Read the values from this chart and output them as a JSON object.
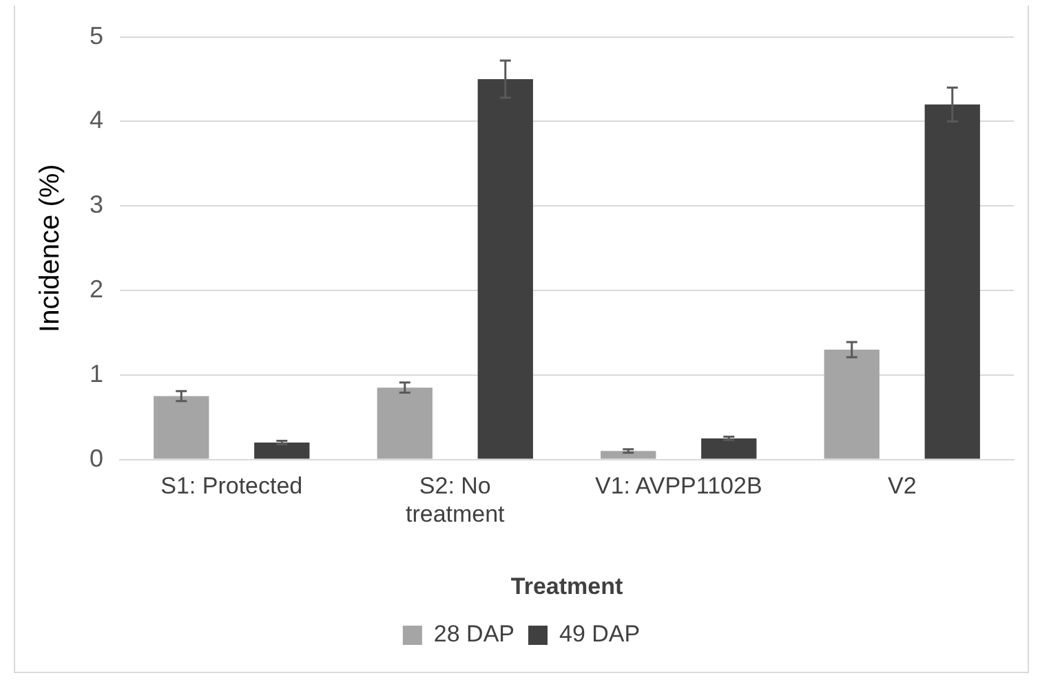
{
  "chart_data": {
    "type": "bar",
    "xlabel": "Treatment",
    "ylabel": "Incidence (%)",
    "categories": [
      "S1: Protected",
      "S2: No treatment",
      "V1: AVPP1102B",
      "V2"
    ],
    "series": [
      {
        "name": "28 DAP",
        "color": "#a5a5a5",
        "values": [
          0.75,
          0.85,
          0.1,
          1.3
        ],
        "errors": [
          0.06,
          0.06,
          0.02,
          0.09
        ]
      },
      {
        "name": "49 DAP",
        "color": "#404040",
        "values": [
          0.2,
          4.5,
          0.25,
          4.2
        ],
        "errors": [
          0.02,
          0.22,
          0.02,
          0.2
        ]
      }
    ],
    "ylim": [
      0,
      5
    ],
    "yticks": [
      0,
      1,
      2,
      3,
      4,
      5
    ],
    "grid": "y",
    "legend": "bottom"
  }
}
